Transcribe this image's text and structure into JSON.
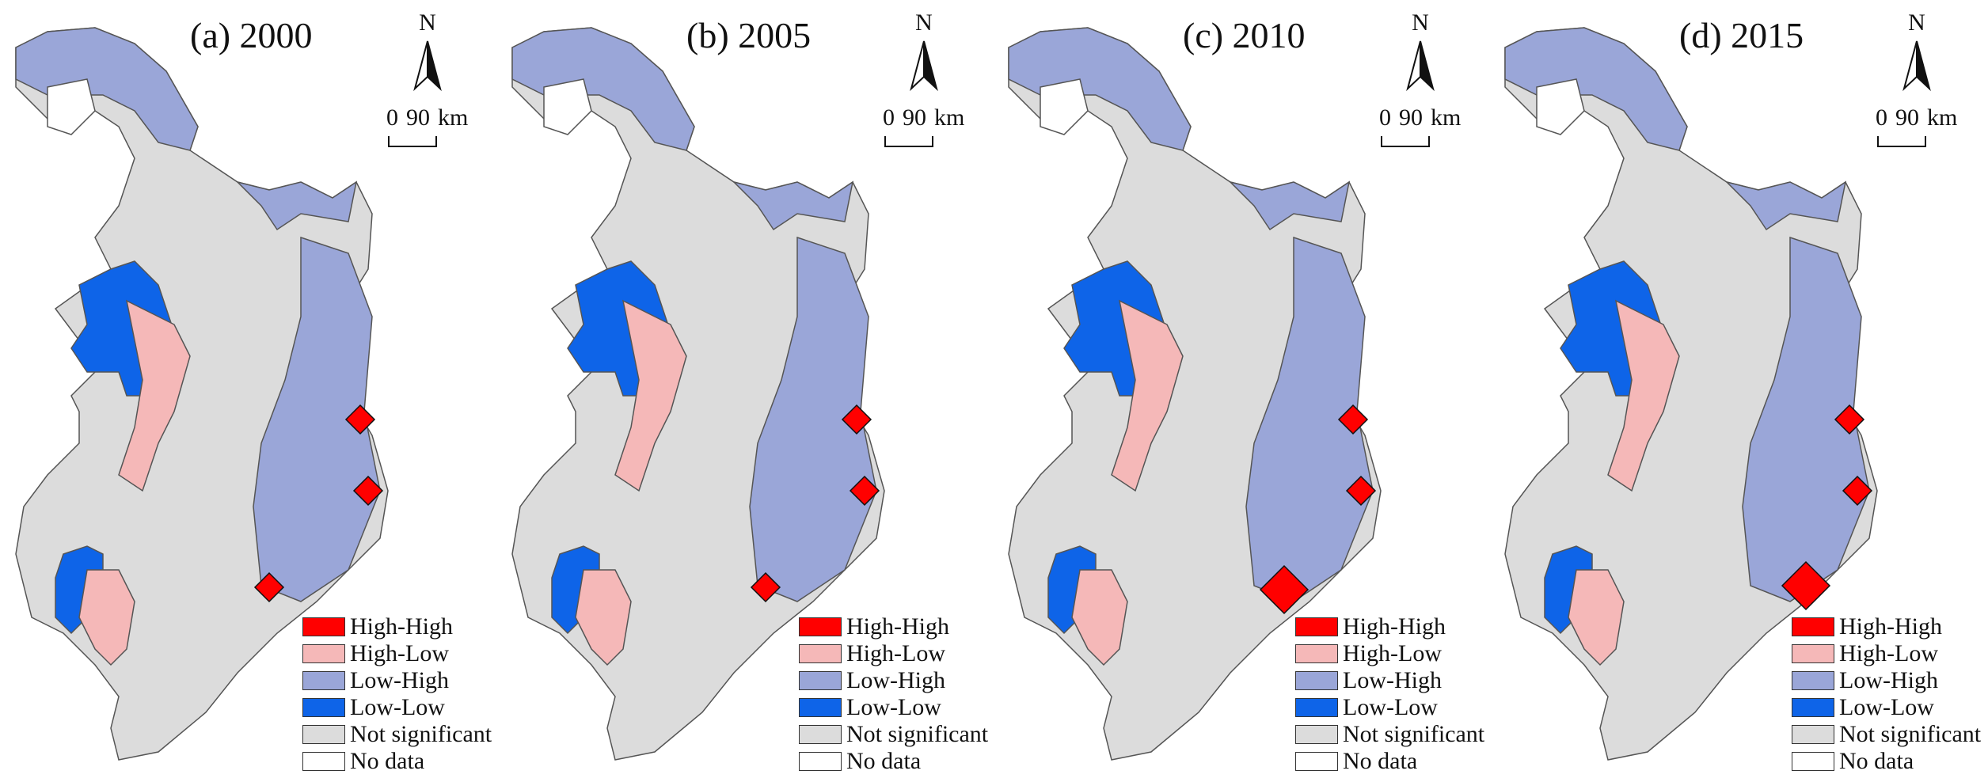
{
  "panels": [
    {
      "title": "(a) 2000",
      "hotspots": [
        [
          455,
          530
        ],
        [
          465,
          620
        ],
        [
          340,
          742
        ]
      ]
    },
    {
      "title": "(b) 2005",
      "hotspots": [
        [
          455,
          530
        ],
        [
          465,
          620
        ],
        [
          340,
          742
        ]
      ]
    },
    {
      "title": "(c) 2010",
      "hotspots": [
        [
          455,
          530
        ],
        [
          465,
          620
        ],
        [
          368,
          745
        ]
      ]
    },
    {
      "title": "(d) 2015",
      "hotspots": [
        [
          455,
          530
        ],
        [
          465,
          620
        ],
        [
          400,
          740
        ]
      ]
    }
  ],
  "north_label": "N",
  "scale": {
    "start": "0",
    "end": "90",
    "unit": "km"
  },
  "legend": [
    {
      "label": "High-High",
      "color": "#ff0000"
    },
    {
      "label": "High-Low",
      "color": "#f5b8b8"
    },
    {
      "label": "Low-High",
      "color": "#9aa6d8"
    },
    {
      "label": "Low-Low",
      "color": "#0e64e8"
    },
    {
      "label": "Not significant",
      "color": "#dcdcdc"
    },
    {
      "label": "No data",
      "color": "#ffffff"
    }
  ]
}
